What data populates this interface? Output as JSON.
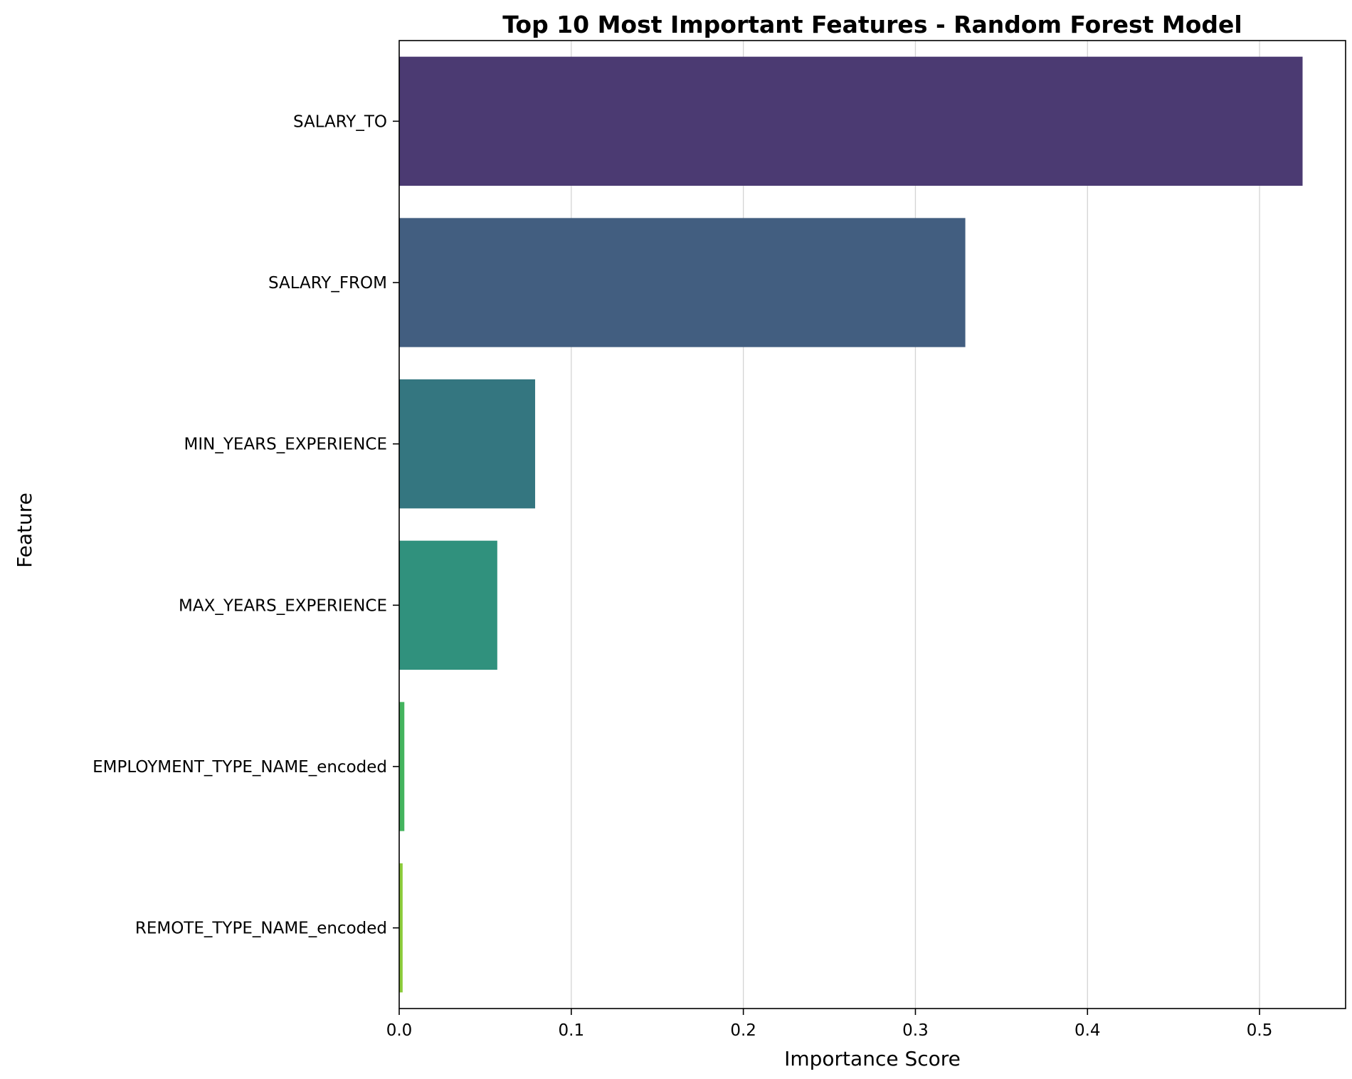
{
  "chart_data": {
    "type": "bar",
    "orientation": "horizontal",
    "title": "Top 10 Most Important Features - Random Forest Model",
    "xlabel": "Importance Score",
    "ylabel": "Feature",
    "xlim": [
      0,
      0.55
    ],
    "xticks": [
      "0.0",
      "0.1",
      "0.2",
      "0.3",
      "0.4",
      "0.5"
    ],
    "grid": "vertical",
    "categories": [
      "SALARY_TO",
      "SALARY_FROM",
      "MIN_YEARS_EXPERIENCE",
      "MAX_YEARS_EXPERIENCE",
      "EMPLOYMENT_TYPE_NAME_encoded",
      "REMOTE_TYPE_NAME_encoded"
    ],
    "values": [
      0.525,
      0.329,
      0.079,
      0.057,
      0.003,
      0.002
    ],
    "colors": [
      "#4b3a72",
      "#425e80",
      "#347680",
      "#30917d",
      "#44b45e",
      "#8ccb3b"
    ]
  }
}
